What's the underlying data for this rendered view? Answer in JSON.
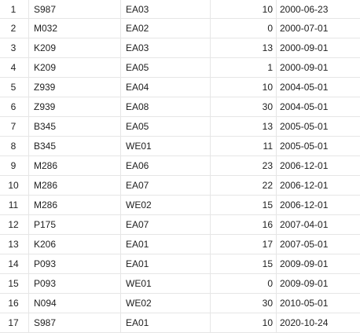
{
  "table": {
    "rows": [
      {
        "index": "1",
        "code": "S987",
        "group": "EA03",
        "value": "10",
        "date": "2000-06-23"
      },
      {
        "index": "2",
        "code": "M032",
        "group": "EA02",
        "value": "0",
        "date": "2000-07-01"
      },
      {
        "index": "3",
        "code": "K209",
        "group": "EA03",
        "value": "13",
        "date": "2000-09-01"
      },
      {
        "index": "4",
        "code": "K209",
        "group": "EA05",
        "value": "1",
        "date": "2000-09-01"
      },
      {
        "index": "5",
        "code": "Z939",
        "group": "EA04",
        "value": "10",
        "date": "2004-05-01"
      },
      {
        "index": "6",
        "code": "Z939",
        "group": "EA08",
        "value": "30",
        "date": "2004-05-01"
      },
      {
        "index": "7",
        "code": "B345",
        "group": "EA05",
        "value": "13",
        "date": "2005-05-01"
      },
      {
        "index": "8",
        "code": "B345",
        "group": "WE01",
        "value": "11",
        "date": "2005-05-01"
      },
      {
        "index": "9",
        "code": "M286",
        "group": "EA06",
        "value": "23",
        "date": "2006-12-01"
      },
      {
        "index": "10",
        "code": "M286",
        "group": "EA07",
        "value": "22",
        "date": "2006-12-01"
      },
      {
        "index": "11",
        "code": "M286",
        "group": "WE02",
        "value": "15",
        "date": "2006-12-01"
      },
      {
        "index": "12",
        "code": "P175",
        "group": "EA07",
        "value": "16",
        "date": "2007-04-01"
      },
      {
        "index": "13",
        "code": "K206",
        "group": "EA01",
        "value": "17",
        "date": "2007-05-01"
      },
      {
        "index": "14",
        "code": "P093",
        "group": "EA01",
        "value": "15",
        "date": "2009-09-01"
      },
      {
        "index": "15",
        "code": "P093",
        "group": "WE01",
        "value": "0",
        "date": "2009-09-01"
      },
      {
        "index": "16",
        "code": "N094",
        "group": "WE02",
        "value": "30",
        "date": "2010-05-01"
      },
      {
        "index": "17",
        "code": "S987",
        "group": "EA01",
        "value": "10",
        "date": "2020-10-24"
      }
    ]
  }
}
